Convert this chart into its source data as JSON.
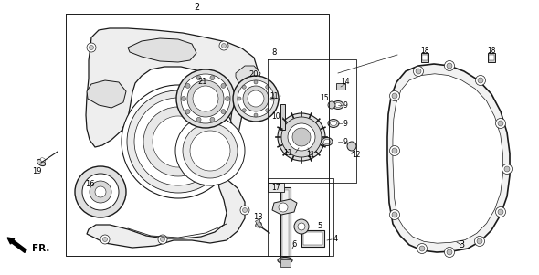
{
  "bg_color": "#ffffff",
  "line_color": "#1a1a1a",
  "gray1": "#e8e8e8",
  "gray2": "#d0d0d0",
  "gray3": "#b8b8b8",
  "gray4": "#f4f4f4",
  "gray5": "#c8c8c8"
}
